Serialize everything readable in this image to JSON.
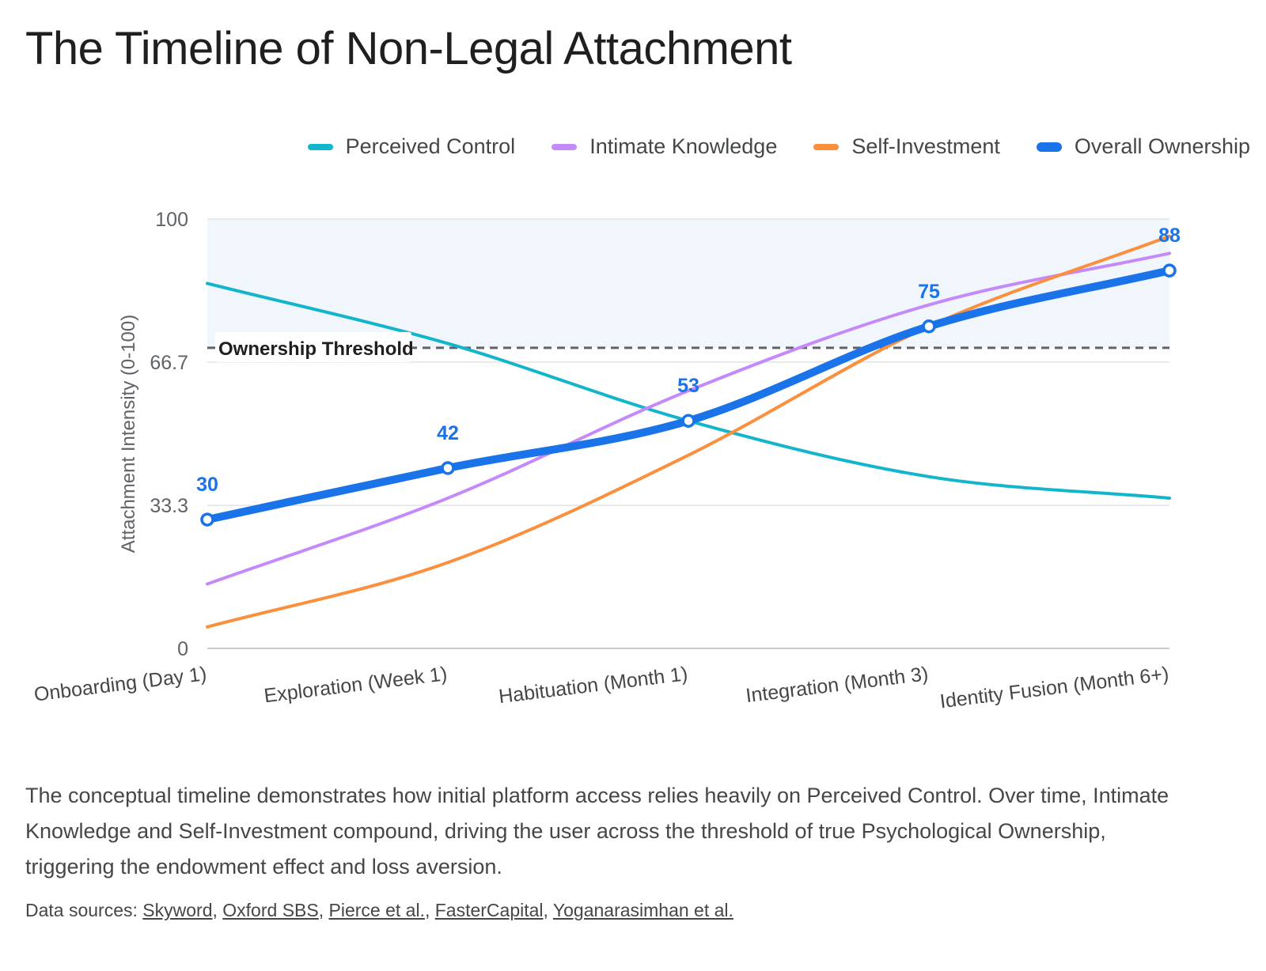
{
  "title": "The Timeline of Non-Legal Attachment",
  "description": "The conceptual timeline demonstrates how initial platform access relies heavily on Perceived Control. Over time, Intimate Knowledge and Self-Investment compound, driving the user across the threshold of true Psychological Ownership, triggering the endowment effect and loss aversion.",
  "sources": {
    "label": "Data sources:",
    "links": [
      "Skyword",
      "Oxford SBS",
      "Pierce et al.",
      "FasterCapital",
      "Yoganarasimhan et al."
    ]
  },
  "chart_data": {
    "type": "line",
    "title": "The Timeline of Non-Legal Attachment",
    "xlabel": "",
    "ylabel": "Attachment Intensity (0-100)",
    "ylim": [
      0,
      100
    ],
    "yticks": [
      "0",
      "33.3",
      "66.7",
      "100"
    ],
    "categories": [
      "Onboarding (Day 1)",
      "Exploration (Week 1)",
      "Habituation (Month 1)",
      "Integration (Month 3)",
      "Identity Fusion (Month 6+)"
    ],
    "legend_position": "top-right",
    "grid": true,
    "threshold": {
      "label": "Ownership Threshold",
      "value": 70,
      "shaded_above": true
    },
    "series": [
      {
        "name": "Perceived Control",
        "color": "#12b5cb",
        "values": [
          85,
          71,
          53,
          40,
          35
        ]
      },
      {
        "name": "Intimate Knowledge",
        "color": "#c58af9",
        "values": [
          15,
          35,
          60,
          80,
          92
        ]
      },
      {
        "name": "Self-Investment",
        "color": "#fa903e",
        "values": [
          5,
          20,
          45,
          75,
          96
        ]
      },
      {
        "name": "Overall Ownership",
        "color": "#1a73e8",
        "values": [
          30,
          42,
          53,
          75,
          88
        ],
        "data_labels": [
          "30",
          "42",
          "53",
          "75",
          "88"
        ],
        "emphasis": true
      }
    ]
  }
}
